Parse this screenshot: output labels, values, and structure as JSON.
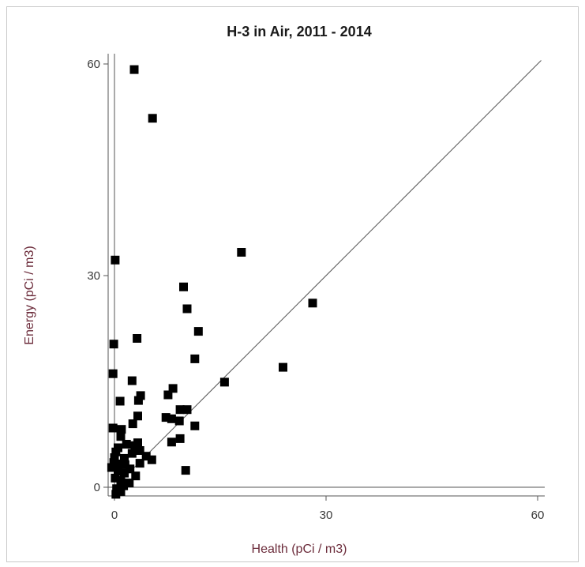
{
  "chart_data": {
    "type": "scatter",
    "title": "H-3 in Air, 2011 - 2014",
    "xlabel": "Health (pCi / m3)",
    "ylabel": "Energy (pCi / m3)",
    "xlim": [
      -1,
      60.5
    ],
    "ylim": [
      -1.5,
      61
    ],
    "xticks": [
      "0",
      "30",
      "60"
    ],
    "yticks": [
      "0",
      "30",
      "60"
    ],
    "reference_line": "y = x",
    "grid": false,
    "marker_color": "#000000",
    "line_color": "#555555",
    "points": [
      {
        "x": 2.8,
        "y": 59.2
      },
      {
        "x": 5.4,
        "y": 52.3
      },
      {
        "x": 0.1,
        "y": 32.2
      },
      {
        "x": 18.0,
        "y": 33.3
      },
      {
        "x": 9.8,
        "y": 28.4
      },
      {
        "x": 10.3,
        "y": 25.3
      },
      {
        "x": 28.1,
        "y": 26.1
      },
      {
        "x": 11.9,
        "y": 22.1
      },
      {
        "x": 3.2,
        "y": 21.1
      },
      {
        "x": -0.1,
        "y": 20.3
      },
      {
        "x": 11.4,
        "y": 18.2
      },
      {
        "x": 23.9,
        "y": 17.0
      },
      {
        "x": -0.2,
        "y": 16.1
      },
      {
        "x": 2.5,
        "y": 15.1
      },
      {
        "x": 15.6,
        "y": 14.9
      },
      {
        "x": 8.3,
        "y": 14.0
      },
      {
        "x": 3.7,
        "y": 13.0
      },
      {
        "x": 7.6,
        "y": 13.1
      },
      {
        "x": 3.4,
        "y": 12.3
      },
      {
        "x": 0.8,
        "y": 12.2
      },
      {
        "x": 9.3,
        "y": 11.0
      },
      {
        "x": 10.3,
        "y": 11.0
      },
      {
        "x": 3.3,
        "y": 10.1
      },
      {
        "x": 7.3,
        "y": 9.9
      },
      {
        "x": 8.1,
        "y": 9.7
      },
      {
        "x": 9.2,
        "y": 9.4
      },
      {
        "x": 2.6,
        "y": 9.0
      },
      {
        "x": 11.4,
        "y": 8.7
      },
      {
        "x": -0.2,
        "y": 8.4
      },
      {
        "x": 1.0,
        "y": 8.2
      },
      {
        "x": 0.9,
        "y": 7.2
      },
      {
        "x": 9.3,
        "y": 6.9
      },
      {
        "x": 8.1,
        "y": 6.4
      },
      {
        "x": 3.3,
        "y": 6.3
      },
      {
        "x": 1.7,
        "y": 6.1
      },
      {
        "x": 2.9,
        "y": 5.9
      },
      {
        "x": 0.5,
        "y": 5.6
      },
      {
        "x": 3.6,
        "y": 5.2
      },
      {
        "x": 0.2,
        "y": 5.0
      },
      {
        "x": 2.5,
        "y": 4.8
      },
      {
        "x": 4.5,
        "y": 4.4
      },
      {
        "x": 0.0,
        "y": 4.2
      },
      {
        "x": 1.4,
        "y": 4.1
      },
      {
        "x": 5.3,
        "y": 3.9
      },
      {
        "x": -0.1,
        "y": 3.5
      },
      {
        "x": 0.7,
        "y": 3.3
      },
      {
        "x": 1.5,
        "y": 3.2
      },
      {
        "x": 3.6,
        "y": 3.4
      },
      {
        "x": -0.4,
        "y": 2.8
      },
      {
        "x": 2.2,
        "y": 2.6
      },
      {
        "x": 0.5,
        "y": 2.3
      },
      {
        "x": 10.1,
        "y": 2.4
      },
      {
        "x": 1.4,
        "y": 2.0
      },
      {
        "x": 3.0,
        "y": 1.6
      },
      {
        "x": 0.1,
        "y": 1.3
      },
      {
        "x": 0.9,
        "y": 1.0
      },
      {
        "x": 2.1,
        "y": 0.6
      },
      {
        "x": 1.3,
        "y": 0.2
      },
      {
        "x": 0.3,
        "y": -0.2
      },
      {
        "x": 0.9,
        "y": -0.6
      },
      {
        "x": 0.2,
        "y": -1.0
      }
    ]
  }
}
